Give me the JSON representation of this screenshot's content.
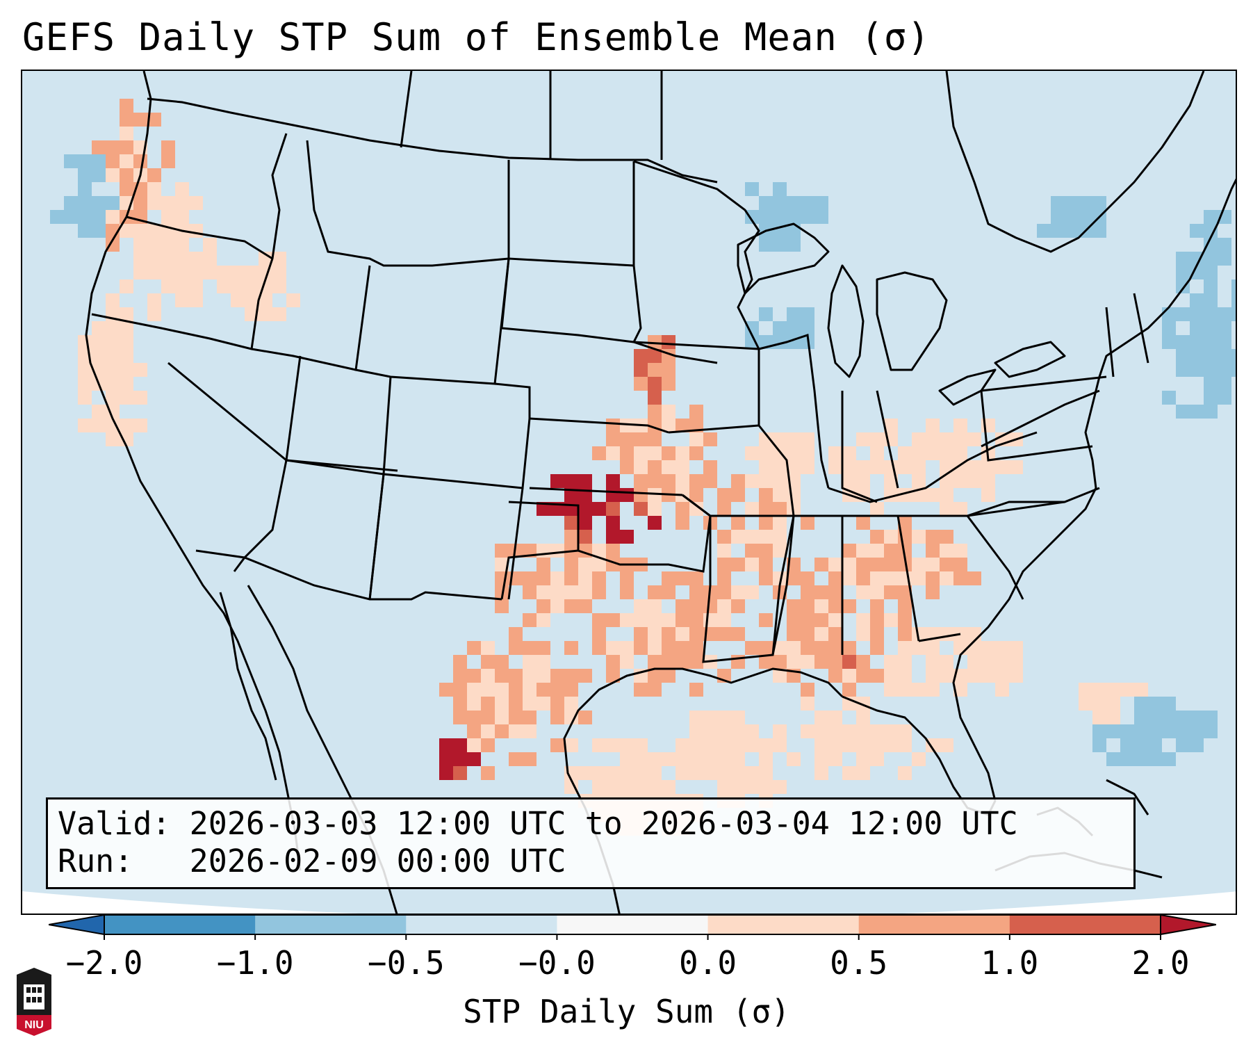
{
  "title": "GEFS Daily STP Sum of Ensemble Mean (σ)",
  "info_box": {
    "valid_line": "Valid: 2026-03-03 12:00 UTC to 2026-03-04 12:00 UTC",
    "run_line": "Run:   2026-02-09 00:00 UTC"
  },
  "colorbar": {
    "label": "STP Daily Sum (σ)",
    "ticks": [
      "−2.0",
      "−1.0",
      "−0.5",
      "−0.0",
      "0.0",
      "0.5",
      "1.0",
      "2.0"
    ],
    "bins": [
      {
        "from": "−2.0",
        "to": "−1.0",
        "color": "#4393c3"
      },
      {
        "from": "−1.0",
        "to": "−0.5",
        "color": "#92c5de"
      },
      {
        "from": "−0.5",
        "to": "−0.0",
        "color": "#d1e5f0"
      },
      {
        "from": "−0.0",
        "to": "0.0",
        "color": "#f7f7f7"
      },
      {
        "from": "0.0",
        "to": "0.5",
        "color": "#fddbc7"
      },
      {
        "from": "0.5",
        "to": "1.0",
        "color": "#f4a582"
      },
      {
        "from": "1.0",
        "to": "2.0",
        "color": "#d6604d"
      }
    ],
    "under_color": "#2166ac",
    "over_color": "#b2182b"
  },
  "logo": {
    "text": "NIU",
    "color": "#c8102e"
  }
}
